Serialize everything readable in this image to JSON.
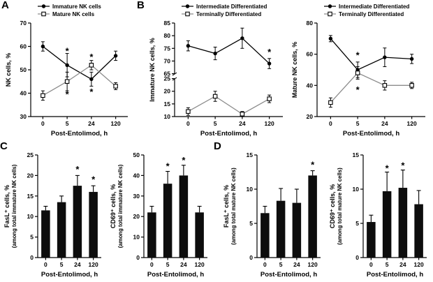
{
  "figure": {
    "panels": [
      {
        "label": "A"
      },
      {
        "label": "B"
      },
      {
        "label": "C"
      },
      {
        "label": "D"
      }
    ]
  },
  "colors": {
    "primary_series": "#000000",
    "secondary_series_line": "#8c8c8c",
    "bar_fill": "#0d0d0d",
    "background": "#ffffff"
  },
  "chart_data": [
    {
      "panel": "A",
      "type": "line",
      "categories": [
        "0",
        "5",
        "24",
        "120"
      ],
      "xlabel": "Post-Entolimod, h",
      "ylabel": [
        "NK cells, %"
      ],
      "yaxis": {
        "segments": [
          {
            "min": 30,
            "max": 70,
            "ticks": [
              30,
              40,
              50,
              60,
              70
            ]
          }
        ]
      },
      "series": [
        {
          "name": "Immature NK cells",
          "marker": "filled-circle",
          "line_color": "#000000",
          "values": [
            60,
            52,
            46,
            56
          ],
          "errors": [
            2,
            5,
            3,
            2
          ]
        },
        {
          "name": "Mature NK cells",
          "marker": "open-square",
          "line_color": "#8c8c8c",
          "values": [
            39,
            45,
            52,
            43
          ],
          "errors": [
            2,
            4,
            2,
            1.5
          ]
        }
      ],
      "annotations": [
        {
          "x": 1,
          "y": 58.5,
          "text": "*"
        },
        {
          "x": 1,
          "y": 40,
          "text": "*"
        },
        {
          "x": 2,
          "y": 56,
          "text": "*"
        },
        {
          "x": 2,
          "y": 41,
          "text": "*"
        }
      ]
    },
    {
      "panel": "B",
      "type": "line",
      "categories": [
        "0",
        "5",
        "24",
        "120"
      ],
      "xlabel": "Post-Entolimod, h",
      "ylabel": [
        "Immature NK cells, %"
      ],
      "yaxis": {
        "segments": [
          {
            "min": 10,
            "max": 25,
            "ticks": [
              10,
              15,
              20,
              25
            ]
          },
          {
            "min": 65,
            "max": 85,
            "ticks": [
              65,
              70,
              75,
              80,
              85
            ]
          }
        ]
      },
      "series": [
        {
          "name": "Intermediate Differentiated",
          "marker": "filled-circle",
          "line_color": "#000000",
          "values": [
            76,
            73,
            79,
            69
          ],
          "errors": [
            2,
            2.5,
            4,
            2
          ]
        },
        {
          "name": "Terminally Differentiated",
          "marker": "open-square",
          "line_color": "#8c8c8c",
          "values": [
            12,
            18,
            11,
            17
          ],
          "errors": [
            1.5,
            2,
            1,
            1.5
          ]
        }
      ],
      "annotations": [
        {
          "x": 3,
          "y": 74,
          "text": "*"
        }
      ]
    },
    {
      "panel": "B",
      "type": "line",
      "categories": [
        "0",
        "5",
        "24",
        "120"
      ],
      "xlabel": "Post-Entolimod, h",
      "ylabel": [
        "Mature NK cells, %"
      ],
      "yaxis": {
        "segments": [
          {
            "min": 20,
            "max": 80,
            "ticks": [
              20,
              40,
              60,
              80
            ]
          }
        ]
      },
      "series": [
        {
          "name": "Intermediate Differentiated",
          "marker": "filled-circle",
          "line_color": "#000000",
          "values": [
            70,
            50,
            58,
            57
          ],
          "errors": [
            2,
            5,
            6,
            3
          ]
        },
        {
          "name": "Terminally Differentiated",
          "marker": "open-square",
          "line_color": "#8c8c8c",
          "values": [
            29,
            48,
            40,
            40
          ],
          "errors": [
            3,
            4,
            3,
            2
          ]
        }
      ],
      "annotations": [
        {
          "x": 1,
          "y": 60,
          "text": "*"
        },
        {
          "x": 1,
          "y": 38,
          "text": "*"
        }
      ]
    },
    {
      "panel": "C",
      "type": "bar",
      "categories": [
        "0",
        "5",
        "24",
        "120"
      ],
      "xlabel": "Post-Entolimod, h",
      "ylabel": [
        "FasL⁺ cells, %",
        "(among total immature NK cells)"
      ],
      "yaxis": {
        "segments": [
          {
            "min": 0,
            "max": 25,
            "ticks": [
              0,
              5,
              10,
              15,
              20,
              25
            ]
          }
        ]
      },
      "series": [
        {
          "marker": "bar",
          "line_color": "#000000",
          "values": [
            11.5,
            13.5,
            17.5,
            16
          ],
          "errors": [
            1,
            1.5,
            2.5,
            1.5
          ]
        }
      ],
      "annotations": [
        {
          "x": 2,
          "y": 21.8,
          "text": "*"
        },
        {
          "x": 3,
          "y": 19.3,
          "text": "*"
        }
      ]
    },
    {
      "panel": "C",
      "type": "bar",
      "categories": [
        "0",
        "5",
        "24",
        "120"
      ],
      "xlabel": "Post-Entolimod, h",
      "ylabel": [
        "CD69⁺ cells, %",
        "(among total immature NK cells)"
      ],
      "yaxis": {
        "segments": [
          {
            "min": 0,
            "max": 50,
            "ticks": [
              0,
              10,
              20,
              30,
              40,
              50
            ]
          }
        ]
      },
      "series": [
        {
          "marker": "bar",
          "line_color": "#000000",
          "values": [
            22,
            36,
            40,
            22
          ],
          "errors": [
            3,
            6,
            5,
            3
          ]
        }
      ],
      "annotations": [
        {
          "x": 1,
          "y": 45,
          "text": "*"
        },
        {
          "x": 2,
          "y": 48,
          "text": "*"
        }
      ]
    },
    {
      "panel": "D",
      "type": "bar",
      "categories": [
        "0",
        "5",
        "24",
        "120"
      ],
      "xlabel": "Post-Entolimod, h",
      "ylabel": [
        "FasL⁺ cells, %",
        "(among total mature NK cells)"
      ],
      "yaxis": {
        "segments": [
          {
            "min": 0,
            "max": 15,
            "ticks": [
              0,
              5,
              10,
              15
            ]
          }
        ]
      },
      "series": [
        {
          "marker": "bar",
          "line_color": "#000000",
          "values": [
            6.5,
            8.3,
            8,
            12
          ],
          "errors": [
            1,
            1.8,
            2,
            0.7
          ]
        }
      ],
      "annotations": [
        {
          "x": 3,
          "y": 13.7,
          "text": "*"
        }
      ]
    },
    {
      "panel": "D",
      "type": "bar",
      "categories": [
        "0",
        "5",
        "24",
        "120"
      ],
      "xlabel": "Post-Entolimod, h",
      "ylabel": [
        "CD69⁺ cells, %",
        "(among total mature NK cells)"
      ],
      "yaxis": {
        "segments": [
          {
            "min": 0,
            "max": 15,
            "ticks": [
              0,
              5,
              10,
              15
            ]
          }
        ]
      },
      "series": [
        {
          "marker": "bar",
          "line_color": "#000000",
          "values": [
            5.2,
            9.7,
            10.2,
            7.8
          ],
          "errors": [
            1,
            2.8,
            2.6,
            2
          ]
        }
      ],
      "annotations": [
        {
          "x": 1,
          "y": 13.2,
          "text": "*"
        },
        {
          "x": 2,
          "y": 13.6,
          "text": "*"
        }
      ]
    }
  ]
}
